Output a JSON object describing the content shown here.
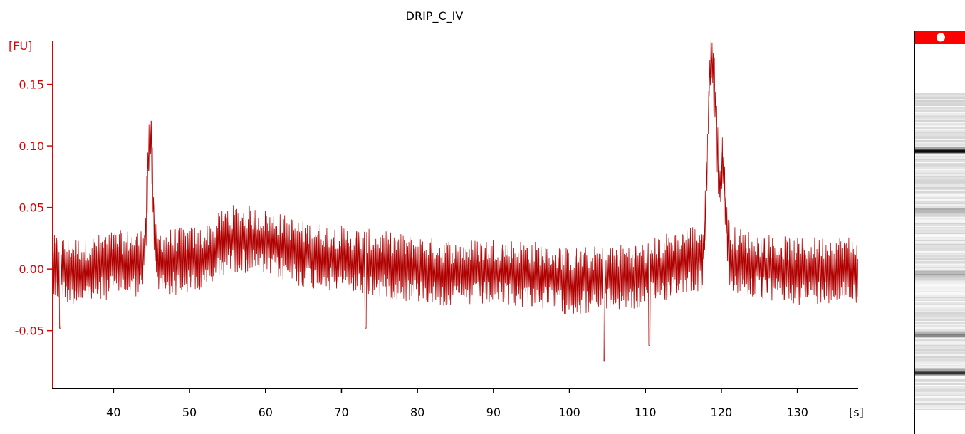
{
  "title": "DRIP_C_IV",
  "colors": {
    "axis_y": "#e00000",
    "trace": "#b00000",
    "axis_x": "#000000",
    "marker": "#ff0000"
  },
  "chart_data": {
    "type": "line",
    "title": "DRIP_C_IV",
    "ylabel": "[FU]",
    "xlabel": "[s]",
    "xlim": [
      32,
      138
    ],
    "ylim": [
      -0.097,
      0.185
    ],
    "yticks": [
      "0.15",
      "0.10",
      "0.05",
      "0.00",
      "-0.05"
    ],
    "ytick_values": [
      0.15,
      0.1,
      0.05,
      0.0,
      -0.05
    ],
    "xticks": [
      "40",
      "50",
      "60",
      "70",
      "80",
      "90",
      "100",
      "110",
      "120",
      "130"
    ],
    "xtick_values": [
      40,
      50,
      60,
      70,
      80,
      90,
      100,
      110,
      120,
      130
    ],
    "series": [
      {
        "baseline": [
          [
            32,
            0.0
          ],
          [
            36,
            -0.002
          ],
          [
            40,
            0.004
          ],
          [
            44,
            0.005
          ],
          [
            48,
            0.006
          ],
          [
            52,
            0.008
          ],
          [
            55,
            0.025
          ],
          [
            58,
            0.024
          ],
          [
            61,
            0.02
          ],
          [
            65,
            0.012
          ],
          [
            70,
            0.008
          ],
          [
            75,
            0.004
          ],
          [
            80,
            0.0
          ],
          [
            85,
            -0.004
          ],
          [
            90,
            -0.002
          ],
          [
            95,
            -0.004
          ],
          [
            100,
            -0.01
          ],
          [
            105,
            -0.008
          ],
          [
            110,
            -0.005
          ],
          [
            115,
            0.008
          ],
          [
            120,
            0.01
          ],
          [
            125,
            0.002
          ],
          [
            130,
            -0.002
          ],
          [
            135,
            0.0
          ],
          [
            138,
            0.0
          ]
        ],
        "noise_amplitude": 0.022,
        "peaks": [
          {
            "x": 44.8,
            "y": 0.118
          },
          {
            "x": 118.5,
            "y": 0.158
          },
          {
            "x": 119.2,
            "y": 0.13
          },
          {
            "x": 120.2,
            "y": 0.09
          }
        ],
        "dips": [
          {
            "x": 104.5,
            "y": -0.075
          },
          {
            "x": 110.5,
            "y": -0.062
          },
          {
            "x": 33.0,
            "y": -0.048
          },
          {
            "x": 73.2,
            "y": -0.048
          }
        ]
      }
    ]
  },
  "gel_bands": [
    {
      "pos": 0.18,
      "intensity": 0.92
    },
    {
      "pos": 0.37,
      "intensity": 0.28
    },
    {
      "pos": 0.57,
      "intensity": 0.28
    },
    {
      "pos": 0.76,
      "intensity": 0.42
    },
    {
      "pos": 0.88,
      "intensity": 0.75
    }
  ]
}
